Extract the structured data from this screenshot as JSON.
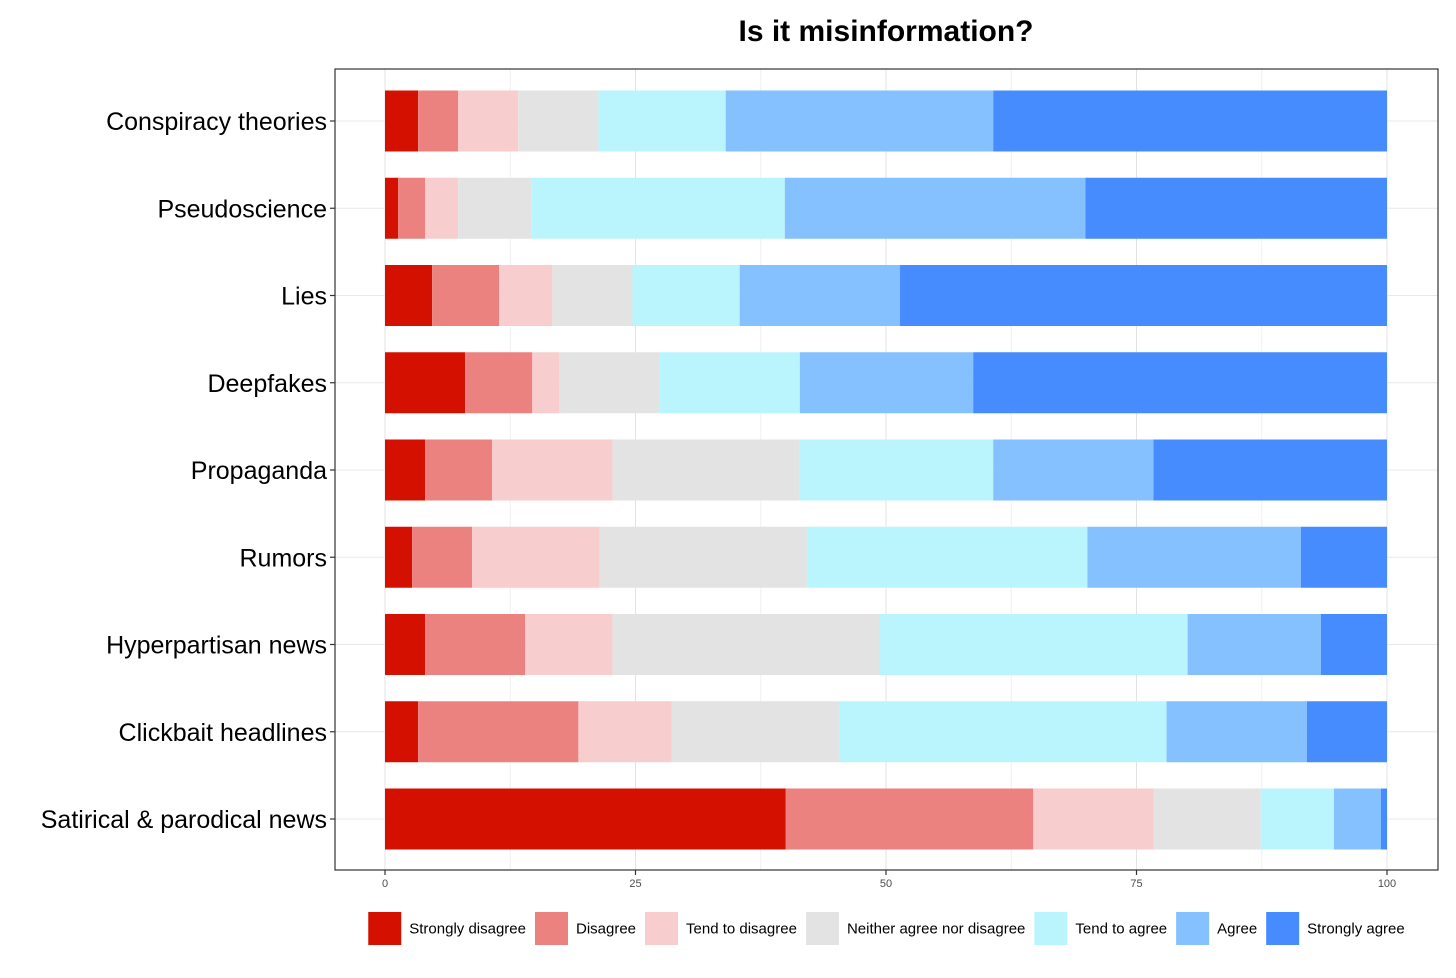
{
  "chart_data": {
    "type": "bar",
    "orientation": "horizontal",
    "stacked": true,
    "title": "Is it misinformation?",
    "xlabel": "",
    "ylabel": "",
    "xlim": [
      0,
      100
    ],
    "xticks": [
      0,
      25,
      50,
      75,
      100
    ],
    "xtick_labels": [
      "0",
      "25",
      "50",
      "75",
      "100"
    ],
    "grid": true,
    "legend_position": "bottom",
    "categories": [
      "Conspiracy theories",
      "Pseudoscience",
      "Lies",
      "Deepfakes",
      "Propaganda",
      "Rumors",
      "Hyperpartisan news",
      "Clickbait headlines",
      "Satirical & parodical news"
    ],
    "series": [
      {
        "name": "Strongly disagree",
        "color": "#d41100",
        "values": [
          3.3,
          1.3,
          4.7,
          8.0,
          4.0,
          2.7,
          4.0,
          3.3,
          40.0
        ]
      },
      {
        "name": "Disagree",
        "color": "#eb8280",
        "values": [
          4.0,
          2.7,
          6.7,
          6.7,
          6.7,
          6.0,
          10.0,
          16.0,
          24.7
        ]
      },
      {
        "name": "Tend to disagree",
        "color": "#f7cdcd",
        "values": [
          6.0,
          3.3,
          5.3,
          2.7,
          12.0,
          12.7,
          8.7,
          9.3,
          12.0
        ]
      },
      {
        "name": "Neither agree nor disagree",
        "color": "#e3e3e3",
        "values": [
          8.0,
          7.3,
          8.0,
          10.0,
          18.7,
          20.7,
          26.7,
          16.7,
          10.7
        ]
      },
      {
        "name": "Tend to agree",
        "color": "#baf5fd",
        "values": [
          12.7,
          25.3,
          10.7,
          14.0,
          19.3,
          28.0,
          30.7,
          32.7,
          7.3
        ]
      },
      {
        "name": "Agree",
        "color": "#84c1fe",
        "values": [
          26.7,
          30.0,
          16.0,
          17.3,
          16.0,
          21.3,
          13.3,
          14.0,
          4.7
        ]
      },
      {
        "name": "Strongly agree",
        "color": "#468cff",
        "values": [
          39.3,
          30.1,
          48.6,
          41.3,
          23.3,
          8.6,
          6.6,
          8.0,
          0.6
        ]
      }
    ]
  }
}
